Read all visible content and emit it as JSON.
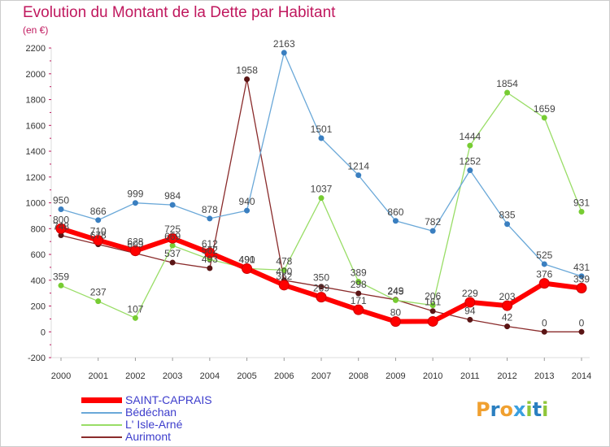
{
  "page": {
    "title": "Evolution du Montant de la Dette par Habitant",
    "unit": "(en €)"
  },
  "logo": {
    "letters": [
      "P",
      "r",
      "o",
      "x",
      "i",
      "t",
      "i"
    ],
    "colors": [
      "#f0a030",
      "#2a7fc0",
      "#f0a030",
      "#3aa0e0",
      "#8fc63a",
      "#2a7fc0",
      "#8fc63a"
    ]
  },
  "chart_data": {
    "type": "line",
    "title": "Evolution du Montant de la Dette par Habitant",
    "ylabel": "(en €)",
    "xlabel": "",
    "x": [
      "2000",
      "2001",
      "2002",
      "2003",
      "2004",
      "2005",
      "2006",
      "2007",
      "2008",
      "2009",
      "2010",
      "2011",
      "2012",
      "2013",
      "2014"
    ],
    "ylim": [
      -200,
      2200
    ],
    "yticks": [
      -200,
      0,
      200,
      400,
      600,
      800,
      1000,
      1200,
      1400,
      1600,
      1800,
      2000,
      2200
    ],
    "grid": false,
    "legend_position": "bottom-left",
    "series": [
      {
        "name": "SAINT-CAPRAIS",
        "color": "#ff0000",
        "marker": "#cc0000",
        "width": 6,
        "values": [
          800,
          710,
          628,
          725,
          612,
          490,
          362,
          269,
          171,
          80,
          81,
          229,
          203,
          376,
          339
        ],
        "labels": [
          "800",
          "710",
          "628",
          "725",
          "612",
          "490",
          "362",
          "269",
          "171",
          "80",
          "",
          "229",
          "203",
          "376",
          "339"
        ]
      },
      {
        "name": "Bédéchan",
        "color": "#6aa8d8",
        "marker": "#3a7fc0",
        "width": 1.3,
        "values": [
          950,
          866,
          999,
          984,
          878,
          940,
          2163,
          1501,
          1214,
          860,
          782,
          1252,
          835,
          525,
          431
        ],
        "labels": [
          "950",
          "866",
          "999",
          "984",
          "878",
          "940",
          "2163",
          "1501",
          "1214",
          "860",
          "782",
          "1252",
          "835",
          "525",
          "431"
        ]
      },
      {
        "name": "L' Isle-Arné",
        "color": "#99dd66",
        "marker": "#77cc33",
        "width": 1.3,
        "values": [
          359,
          237,
          107,
          669,
          562,
          491,
          478,
          1037,
          389,
          245,
          206,
          1444,
          1854,
          1659,
          931
        ],
        "labels": [
          "359",
          "237",
          "107",
          "669",
          "562",
          "491",
          "478",
          "1037",
          "389",
          "245",
          "206",
          "1444",
          "1854",
          "1659",
          "931"
        ]
      },
      {
        "name": "Aurimont",
        "color": "#8a2b2b",
        "marker": "#5a1515",
        "width": 1.3,
        "values": [
          748,
          678,
          609,
          537,
          493,
          1958,
          400,
          350,
          298,
          249,
          161,
          94,
          42,
          0,
          0
        ],
        "labels": [
          "748",
          "678",
          "609",
          "537",
          "493",
          "1958",
          "400",
          "350",
          "298",
          "249",
          "161",
          "94",
          "42",
          "0",
          "0"
        ]
      }
    ]
  }
}
